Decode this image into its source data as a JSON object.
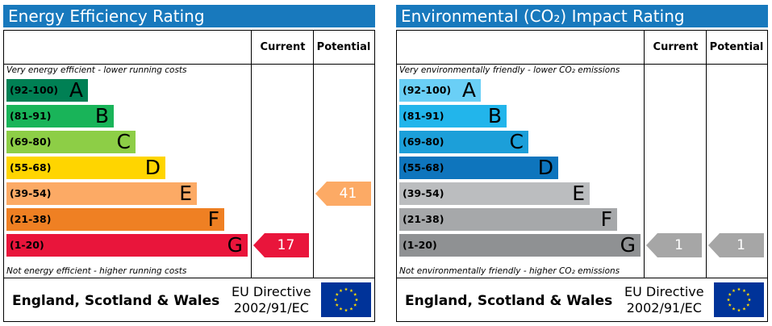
{
  "chart_data": [
    {
      "type": "table",
      "title": "Energy Efficiency Rating",
      "columns": [
        "Current",
        "Potential"
      ],
      "top_note": "Very energy efficient - lower running costs",
      "bottom_note": "Not energy efficient - higher running costs",
      "bands": [
        {
          "range": "(92-100)",
          "letter": "A",
          "color": "#008054"
        },
        {
          "range": "(81-91)",
          "letter": "B",
          "color": "#19b459"
        },
        {
          "range": "(69-80)",
          "letter": "C",
          "color": "#8dce46"
        },
        {
          "range": "(55-68)",
          "letter": "D",
          "color": "#ffd500"
        },
        {
          "range": "(39-54)",
          "letter": "E",
          "color": "#fcaa65"
        },
        {
          "range": "(21-38)",
          "letter": "F",
          "color": "#ef8023"
        },
        {
          "range": "(1-20)",
          "letter": "G",
          "color": "#e9153b"
        }
      ],
      "current": {
        "value": "17",
        "band": "G",
        "color": "#e9153b"
      },
      "potential": {
        "value": "41",
        "band": "E",
        "color": "#fcaa65"
      },
      "footer_region": "England, Scotland & Wales",
      "footer_directive_line1": "EU Directive",
      "footer_directive_line2": "2002/91/EC"
    },
    {
      "type": "table",
      "title": "Environmental (CO₂) Impact Rating",
      "columns": [
        "Current",
        "Potential"
      ],
      "top_note": "Very environmentally friendly - lower CO₂ emissions",
      "bottom_note": "Not environmentally friendly - higher CO₂ emissions",
      "bands": [
        {
          "range": "(92-100)",
          "letter": "A",
          "color": "#6acff6"
        },
        {
          "range": "(81-91)",
          "letter": "B",
          "color": "#22b5eb"
        },
        {
          "range": "(69-80)",
          "letter": "C",
          "color": "#1c9fd9"
        },
        {
          "range": "(55-68)",
          "letter": "D",
          "color": "#0e75bd"
        },
        {
          "range": "(39-54)",
          "letter": "E",
          "color": "#bbbdbf"
        },
        {
          "range": "(21-38)",
          "letter": "F",
          "color": "#a6a8aa"
        },
        {
          "range": "(1-20)",
          "letter": "G",
          "color": "#8f9193"
        }
      ],
      "current": {
        "value": "1",
        "band": "G",
        "color": "#a6a6a6"
      },
      "potential": {
        "value": "1",
        "band": "G",
        "color": "#a6a6a6"
      },
      "footer_region": "England, Scotland & Wales",
      "footer_directive_line1": "EU Directive",
      "footer_directive_line2": "2002/91/EC"
    }
  ]
}
